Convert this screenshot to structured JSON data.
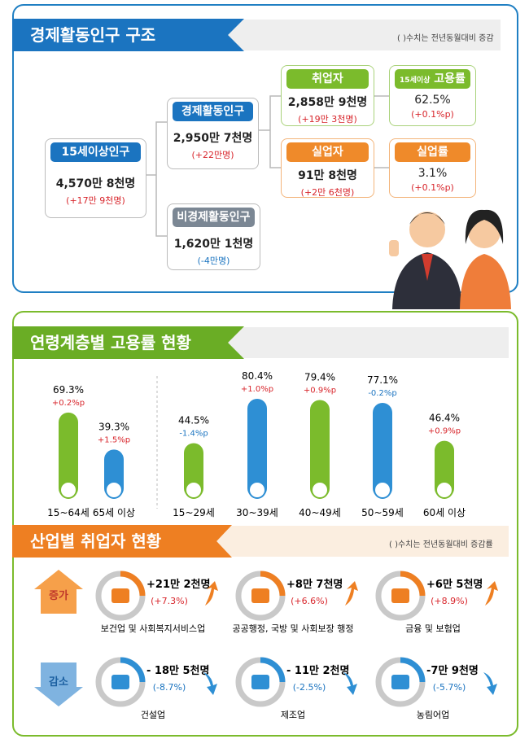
{
  "structure": {
    "title": "경제활동인구 구조",
    "note": "( )수치는 전년동월대비 증감",
    "nodes": [
      {
        "label": "15세이상인구",
        "value": "4,570만 8천명",
        "change": "(+17만 9천명)"
      },
      {
        "label": "경제활동인구",
        "value": "2,950만 7천명",
        "change": "(+22만명)"
      },
      {
        "label": "비경제활동인구",
        "value": "1,620만 1천명",
        "change": "(-4만명)"
      },
      {
        "label": "취업자",
        "value": "2,858만 9천명",
        "change": "(+19만 3천명)"
      },
      {
        "label": "실업자",
        "value": "91만 8천명",
        "change": "(+2만 6천명)"
      },
      {
        "label_prefix": "15세이상",
        "label": "고용률",
        "value": "62.5%",
        "change": "(+0.1%p)"
      },
      {
        "label": "실업률",
        "value": "3.1%",
        "change": "(+0.1%p)"
      }
    ]
  },
  "chart_data": {
    "type": "bar",
    "title": "연령계층별 고용률 현황",
    "categories": [
      "15~64세",
      "65세 이상",
      "15~29세",
      "30~39세",
      "40~49세",
      "50~59세",
      "60세 이상"
    ],
    "values": [
      69.3,
      39.3,
      44.5,
      80.4,
      79.4,
      77.1,
      46.4
    ],
    "value_labels": [
      "69.3%",
      "39.3%",
      "44.5%",
      "80.4%",
      "79.4%",
      "77.1%",
      "46.4%"
    ],
    "changes": [
      "+0.2%p",
      "+1.5%p",
      "-1.4%p",
      "+1.0%p",
      "+0.9%p",
      "-0.2%p",
      "+0.9%p"
    ],
    "colors": [
      "#7bbb2c",
      "#2e8fd4",
      "#7bbb2c",
      "#2e8fd4",
      "#7bbb2c",
      "#2e8fd4",
      "#7bbb2c"
    ]
  },
  "industry": {
    "title": "산업별 취업자 현황",
    "note": "( )수치는 전년동월대비 증감률",
    "rows": [
      {
        "label": "증가",
        "items": [
          {
            "value": "+21만 2천명",
            "rate": "(+7.3%)",
            "label": "보건업 및 사회복지서비스업"
          },
          {
            "value": "+8만 7천명",
            "rate": "(+6.6%)",
            "label": "공공행정, 국방 및 사회보장 행정"
          },
          {
            "value": "+6만 5천명",
            "rate": "(+8.9%)",
            "label": "금융 및 보험업"
          }
        ]
      },
      {
        "label": "감소",
        "items": [
          {
            "value": "- 18만 5천명",
            "rate": "(-8.7%)",
            "label": "건설업"
          },
          {
            "value": "- 11만 2천명",
            "rate": "(-2.5%)",
            "label": "제조업"
          },
          {
            "value": "-7만 9천명",
            "rate": "(-5.7%)",
            "label": "농림어업"
          }
        ]
      }
    ]
  }
}
